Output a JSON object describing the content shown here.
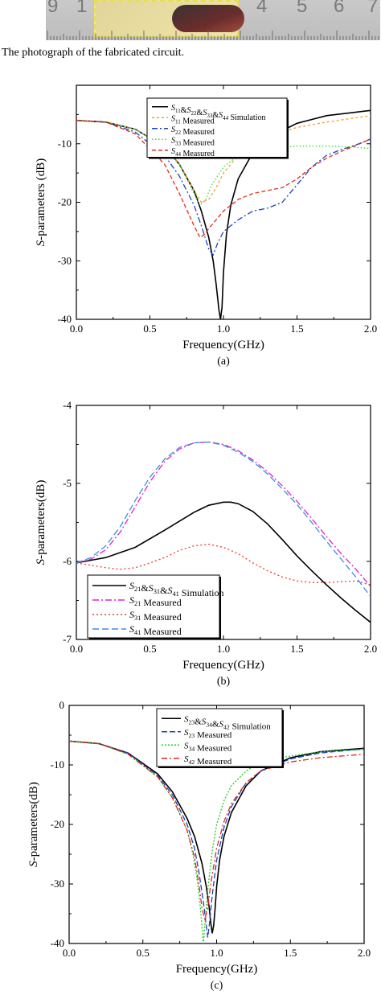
{
  "photo": {
    "caption": "The photograph of the fabricated circuit.",
    "ruler_digits": [
      "9",
      "1",
      "4",
      "5",
      "6",
      "7"
    ]
  },
  "chart_data": [
    {
      "type": "line",
      "panel_label": "(a)",
      "xlabel": "Frequency(GHz)",
      "ylabel_italic": "S",
      "ylabel_rest": "-parameters (dB)",
      "xlim": [
        0.0,
        2.0
      ],
      "ylim": [
        -40,
        0
      ],
      "x_ticks": [
        "0.0",
        "0.5",
        "1.0",
        "1.5",
        "2.0"
      ],
      "y_ticks": [
        "-40",
        "-30",
        "-20",
        "-10"
      ],
      "legend_position": "top-right",
      "grid": false,
      "series": [
        {
          "name": "S11&S22&S33&S44 Simulation",
          "color": "#000000",
          "dash": "solid",
          "x": [
            0.0,
            0.2,
            0.4,
            0.6,
            0.7,
            0.8,
            0.85,
            0.9,
            0.93,
            0.95,
            0.97,
            0.98,
            0.99,
            1.0,
            1.02,
            1.05,
            1.1,
            1.2,
            1.3,
            1.5,
            1.7,
            2.0
          ],
          "y": [
            -6,
            -6.3,
            -7.5,
            -10.5,
            -13.5,
            -18,
            -21.5,
            -26,
            -30,
            -34,
            -38.5,
            -40,
            -38,
            -32,
            -25.5,
            -20.5,
            -16,
            -11.5,
            -9,
            -6.5,
            -5.2,
            -4.3
          ]
        },
        {
          "name": "S11 Measured",
          "color": "#f39c2f",
          "dash": "3,3",
          "x": [
            0.0,
            0.2,
            0.4,
            0.6,
            0.7,
            0.8,
            0.85,
            0.9,
            0.95,
            1.0,
            1.1,
            1.2,
            1.3,
            1.5,
            1.7,
            2.0
          ],
          "y": [
            -6,
            -6.2,
            -7.5,
            -10.5,
            -13.5,
            -18,
            -20,
            -19.5,
            -17.5,
            -15,
            -12,
            -10,
            -8.8,
            -7.2,
            -6.3,
            -5.2
          ]
        },
        {
          "name": "S22 Measured",
          "color": "#1f3fbf",
          "dash": "7,3,2,3",
          "x": [
            0.0,
            0.2,
            0.4,
            0.6,
            0.7,
            0.8,
            0.85,
            0.9,
            0.93,
            0.96,
            1.0,
            1.1,
            1.2,
            1.3,
            1.4,
            1.5,
            1.6,
            1.7,
            1.8,
            1.9,
            2.0
          ],
          "y": [
            -6,
            -6.3,
            -8,
            -12,
            -15.5,
            -20.5,
            -24,
            -28,
            -29,
            -27,
            -25,
            -23,
            -21.5,
            -21,
            -20,
            -17,
            -14,
            -12,
            -11,
            -10.2,
            -9.2
          ]
        },
        {
          "name": "S33 Measured",
          "color": "#33dd33",
          "dash": "1.5,2.5",
          "x": [
            0.0,
            0.2,
            0.4,
            0.6,
            0.7,
            0.8,
            0.84,
            0.88,
            0.92,
            1.0,
            1.1,
            1.2,
            1.3,
            1.4,
            1.5,
            1.6,
            1.7,
            1.8,
            1.9,
            2.0
          ],
          "y": [
            -6,
            -6.3,
            -7.5,
            -10.5,
            -13.5,
            -18.5,
            -20.5,
            -19.5,
            -17,
            -14,
            -12,
            -11,
            -10.8,
            -10.6,
            -10.4,
            -10.4,
            -10.4,
            -10.4,
            -10.6,
            -10.8
          ]
        },
        {
          "name": "S44 Measured",
          "color": "#e02a1a",
          "dash": "5,3",
          "x": [
            0.0,
            0.2,
            0.4,
            0.6,
            0.7,
            0.8,
            0.84,
            0.87,
            0.9,
            0.95,
            1.0,
            1.1,
            1.2,
            1.3,
            1.4,
            1.5,
            1.6,
            1.7,
            1.8,
            1.9,
            2.0
          ],
          "y": [
            -6,
            -6.3,
            -8.3,
            -13.5,
            -18.5,
            -24,
            -26,
            -25.5,
            -24.5,
            -23,
            -21.5,
            -19.5,
            -18.5,
            -18,
            -17.5,
            -16,
            -14,
            -12.5,
            -11.3,
            -10.3,
            -9.2
          ]
        }
      ],
      "legend": [
        {
          "sub": "11",
          "parts": [
            [
              "S",
              "11"
            ],
            [
              "S",
              "22"
            ],
            [
              "S",
              "33"
            ],
            [
              "S",
              "44"
            ]
          ],
          "suffix": " Simulation"
        },
        {
          "parts": [
            [
              "S",
              "11"
            ]
          ],
          "suffix": " Measured"
        },
        {
          "parts": [
            [
              "S",
              "22"
            ]
          ],
          "suffix": " Measured"
        },
        {
          "parts": [
            [
              "S",
              "33"
            ]
          ],
          "suffix": " Measured"
        },
        {
          "parts": [
            [
              "S",
              "44"
            ]
          ],
          "suffix": " Measured"
        }
      ]
    },
    {
      "type": "line",
      "panel_label": "(b)",
      "xlabel": "Frequency(GHz)",
      "ylabel_italic": "S",
      "ylabel_rest": "-parameters(dB)",
      "xlim": [
        0.0,
        2.0
      ],
      "ylim": [
        -7,
        -4
      ],
      "x_ticks": [
        "0.0",
        "0.5",
        "1.0",
        "1.5",
        "2.0"
      ],
      "y_ticks": [
        "-7",
        "-6",
        "-5",
        "-4"
      ],
      "legend_position": "bottom-left",
      "grid": false,
      "series": [
        {
          "name": "S21&S31&S41 Simulation",
          "color": "#000000",
          "dash": "solid",
          "x": [
            0.0,
            0.2,
            0.4,
            0.6,
            0.8,
            0.9,
            1.0,
            1.05,
            1.1,
            1.2,
            1.3,
            1.4,
            1.5,
            1.6,
            1.7,
            1.8,
            1.9,
            2.0
          ],
          "y": [
            -6.02,
            -5.95,
            -5.82,
            -5.6,
            -5.37,
            -5.28,
            -5.24,
            -5.24,
            -5.26,
            -5.36,
            -5.52,
            -5.72,
            -5.93,
            -6.12,
            -6.3,
            -6.47,
            -6.63,
            -6.78
          ]
        },
        {
          "name": "S21 Measured",
          "color": "#e020d0",
          "dash": "8,3,2,3",
          "x": [
            0.0,
            0.1,
            0.2,
            0.3,
            0.4,
            0.5,
            0.6,
            0.7,
            0.8,
            0.9,
            1.0,
            1.1,
            1.2,
            1.3,
            1.4,
            1.5,
            1.6,
            1.7,
            1.8,
            1.9,
            2.0
          ],
          "y": [
            -6.02,
            -5.97,
            -5.85,
            -5.62,
            -5.3,
            -4.98,
            -4.72,
            -4.56,
            -4.48,
            -4.47,
            -4.5,
            -4.58,
            -4.7,
            -4.85,
            -5.03,
            -5.23,
            -5.45,
            -5.68,
            -5.9,
            -6.1,
            -6.32
          ]
        },
        {
          "name": "S31 Measured",
          "color": "#ee3a2a",
          "dash": "2,3",
          "x": [
            0.0,
            0.1,
            0.2,
            0.3,
            0.4,
            0.5,
            0.6,
            0.7,
            0.8,
            0.9,
            1.0,
            1.1,
            1.2,
            1.3,
            1.4,
            1.5,
            1.6,
            1.7,
            1.8,
            1.9,
            2.0
          ],
          "y": [
            -6.02,
            -6.05,
            -6.08,
            -6.1,
            -6.08,
            -6.02,
            -5.95,
            -5.86,
            -5.8,
            -5.78,
            -5.82,
            -5.9,
            -6.02,
            -6.12,
            -6.2,
            -6.25,
            -6.27,
            -6.27,
            -6.26,
            -6.25,
            -6.3
          ]
        },
        {
          "name": "S41 Measured",
          "color": "#3a8fe0",
          "dash": "8,4",
          "x": [
            0.0,
            0.1,
            0.2,
            0.3,
            0.4,
            0.5,
            0.6,
            0.7,
            0.8,
            0.9,
            1.0,
            1.1,
            1.2,
            1.3,
            1.4,
            1.5,
            1.6,
            1.7,
            1.8,
            1.9,
            2.0
          ],
          "y": [
            -6.02,
            -5.95,
            -5.8,
            -5.55,
            -5.22,
            -4.92,
            -4.69,
            -4.54,
            -4.48,
            -4.47,
            -4.51,
            -4.6,
            -4.72,
            -4.88,
            -5.07,
            -5.27,
            -5.5,
            -5.74,
            -5.97,
            -6.2,
            -6.45
          ]
        }
      ],
      "legend": [
        {
          "parts": [
            [
              "S",
              "21"
            ],
            [
              "S",
              "31"
            ],
            [
              "S",
              "41"
            ]
          ],
          "suffix": " Simulation"
        },
        {
          "parts": [
            [
              "S",
              "21"
            ]
          ],
          "suffix": " Measured"
        },
        {
          "parts": [
            [
              "S",
              "31"
            ]
          ],
          "suffix": " Measured"
        },
        {
          "parts": [
            [
              "S",
              "41"
            ]
          ],
          "suffix": " Measured"
        }
      ]
    },
    {
      "type": "line",
      "panel_label": "(c)",
      "xlabel": "Frequency(GHz)",
      "ylabel_italic": "S",
      "ylabel_rest": "-parameters(dB)",
      "xlim": [
        0.0,
        2.0
      ],
      "ylim": [
        -40,
        0
      ],
      "x_ticks": [
        "0.0",
        "0.5",
        "1.0",
        "1.5",
        "2.0"
      ],
      "y_ticks": [
        "-40",
        "-30",
        "-20",
        "-10",
        "0"
      ],
      "legend_position": "top-right",
      "grid": false,
      "series": [
        {
          "name": "S23&S34&S42 Simulation",
          "color": "#000000",
          "dash": "solid",
          "x": [
            0.0,
            0.2,
            0.4,
            0.6,
            0.7,
            0.8,
            0.85,
            0.9,
            0.93,
            0.95,
            0.96,
            0.97,
            0.98,
            0.99,
            1.0,
            1.02,
            1.05,
            1.1,
            1.2,
            1.3,
            1.5,
            1.7,
            2.0
          ],
          "y": [
            -6,
            -6.4,
            -8,
            -11.5,
            -14.5,
            -19,
            -22,
            -26.5,
            -30.5,
            -34,
            -36.5,
            -38.3,
            -37,
            -34,
            -30.5,
            -26,
            -22,
            -18,
            -13.5,
            -11,
            -8.8,
            -7.8,
            -7.2
          ]
        },
        {
          "name": "S23 Measured",
          "color": "#1f3fbf",
          "dash": "7,3",
          "x": [
            0.0,
            0.2,
            0.4,
            0.6,
            0.7,
            0.8,
            0.85,
            0.88,
            0.91,
            0.93,
            0.94,
            0.95,
            0.97,
            1.0,
            1.05,
            1.1,
            1.2,
            1.3,
            1.5,
            1.7,
            2.0
          ],
          "y": [
            -6,
            -6.4,
            -8,
            -11.8,
            -15,
            -20,
            -24,
            -28,
            -33,
            -37,
            -39,
            -37,
            -32,
            -26,
            -20.5,
            -17,
            -13,
            -11,
            -9,
            -8,
            -7.3
          ]
        },
        {
          "name": "S34 Measured",
          "color": "#22cc22",
          "dash": "2,2",
          "x": [
            0.0,
            0.2,
            0.4,
            0.6,
            0.7,
            0.8,
            0.84,
            0.87,
            0.89,
            0.905,
            0.91,
            0.92,
            0.94,
            0.97,
            1.0,
            1.05,
            1.1,
            1.2,
            1.3,
            1.5,
            1.7,
            2.0
          ],
          "y": [
            -6,
            -6.4,
            -8.2,
            -12,
            -15.5,
            -21,
            -25,
            -29.5,
            -34,
            -38.5,
            -40,
            -37,
            -31,
            -24.5,
            -20,
            -16,
            -13.5,
            -11,
            -9.5,
            -8.5,
            -7.8,
            -7.4
          ]
        },
        {
          "name": "S42 Measured",
          "color": "#e02a1a",
          "dash": "7,3,2,3",
          "x": [
            0.0,
            0.2,
            0.4,
            0.6,
            0.7,
            0.8,
            0.85,
            0.88,
            0.9,
            0.92,
            0.94,
            0.96,
            1.0,
            1.05,
            1.1,
            1.2,
            1.3,
            1.5,
            1.7,
            2.0
          ],
          "y": [
            -6,
            -6.4,
            -8.2,
            -12,
            -15.5,
            -21,
            -25.5,
            -30,
            -34,
            -36,
            -34,
            -30,
            -24,
            -19.5,
            -16.5,
            -13,
            -11,
            -9.5,
            -8.8,
            -8.2
          ]
        }
      ],
      "legend": [
        {
          "parts": [
            [
              "S",
              "23"
            ],
            [
              "S",
              "34"
            ],
            [
              "S",
              "42"
            ]
          ],
          "suffix": " Simulation"
        },
        {
          "parts": [
            [
              "S",
              "23"
            ]
          ],
          "suffix": " Measured"
        },
        {
          "parts": [
            [
              "S",
              "34"
            ]
          ],
          "suffix": " Measured"
        },
        {
          "parts": [
            [
              "S",
              "42"
            ]
          ],
          "suffix": " Measured"
        }
      ]
    }
  ]
}
